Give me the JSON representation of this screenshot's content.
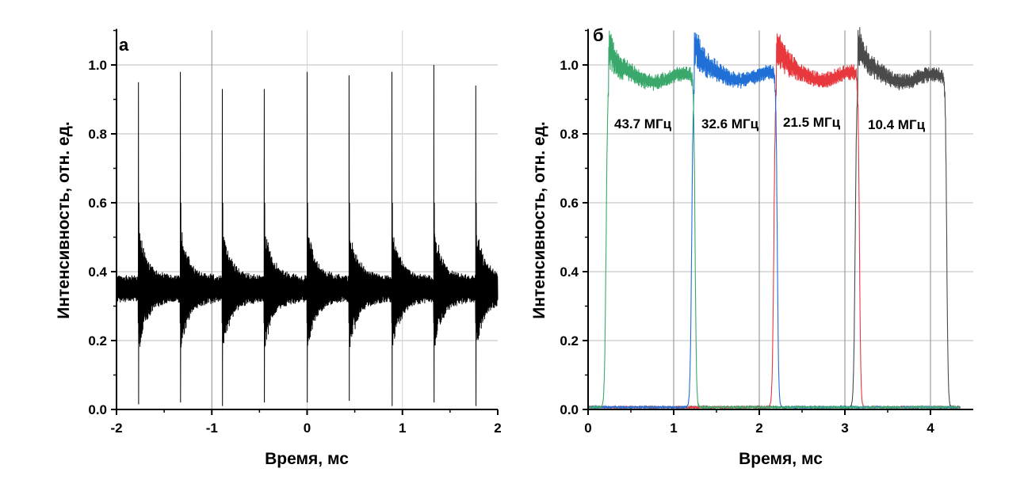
{
  "chart_data": [
    {
      "type": "line",
      "panel_label": "а",
      "xlabel": "Время, мс",
      "ylabel": "Интенсивность, отн. ед.",
      "xlim": [
        -2,
        2
      ],
      "ylim": [
        0,
        1.1
      ],
      "xticks": [
        "-2",
        "-1",
        "0",
        "1",
        "2"
      ],
      "yticks": [
        "0.0",
        "0.2",
        "0.4",
        "0.6",
        "0.8",
        "1.0"
      ],
      "grid": true,
      "series": [
        {
          "color": "#000000",
          "baseline": 0.35,
          "baseline_band": [
            0.31,
            0.39
          ],
          "spike_times": [
            -1.77,
            -1.33,
            -0.89,
            -0.45,
            0.0,
            0.44,
            0.89,
            1.33,
            1.77
          ],
          "spike_maxima": [
            0.95,
            0.98,
            0.93,
            0.93,
            0.98,
            0.97,
            0.98,
            1.0,
            0.94
          ],
          "spike_minima": [
            0.015,
            0.02,
            0.01,
            0.02,
            0.02,
            0.025,
            0.01,
            0.02,
            0.01
          ]
        }
      ]
    },
    {
      "type": "line",
      "panel_label": "б",
      "xlabel": "Время, мс",
      "ylabel": "Интенсивность, отн. ед.",
      "xlim": [
        0,
        4.5
      ],
      "ylim": [
        0,
        1.1
      ],
      "xticks": [
        "0",
        "1",
        "2",
        "3",
        "4"
      ],
      "yticks": [
        "0.0",
        "0.2",
        "0.4",
        "0.6",
        "0.8",
        "1.0"
      ],
      "grid": true,
      "series": [
        {
          "name": "10.4 МГц",
          "color": "#4a4a4a",
          "rise": 3.15,
          "fall": 4.2,
          "plateau": 0.96,
          "peak": 1.08
        },
        {
          "name": "21.5 МГц",
          "color": "#e8383d",
          "rise": 2.2,
          "fall": 3.18,
          "plateau": 0.965,
          "peak": 1.07
        },
        {
          "name": "32.6 МГц",
          "color": "#1f6fd6",
          "rise": 1.24,
          "fall": 2.22,
          "plateau": 0.965,
          "peak": 1.07
        },
        {
          "name": "43.7 МГц",
          "color": "#3aa86b",
          "rise": 0.24,
          "fall": 1.26,
          "plateau": 0.96,
          "peak": 1.06
        }
      ],
      "x_end": 4.35
    }
  ]
}
